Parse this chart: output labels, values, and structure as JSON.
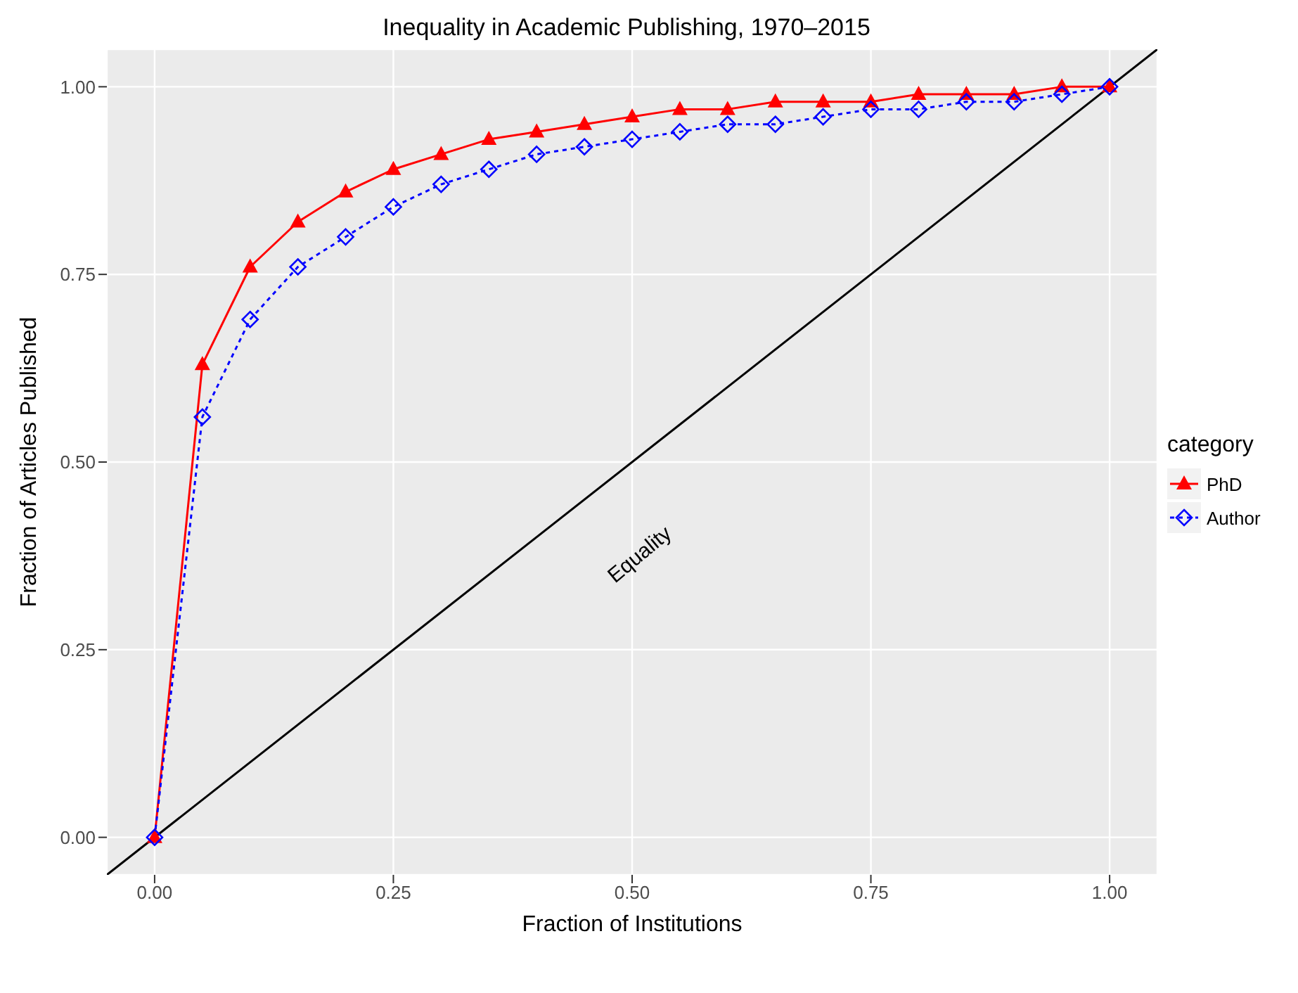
{
  "chart_data": {
    "type": "line",
    "title": "Inequality in Academic Publishing, 1970–2015",
    "xlabel": "Fraction of Institutions",
    "ylabel": "Fraction of Articles Published",
    "legend_title": "category",
    "x": [
      0,
      0.05,
      0.1,
      0.15,
      0.2,
      0.25,
      0.3,
      0.35,
      0.4,
      0.45,
      0.5,
      0.55,
      0.6,
      0.65,
      0.7,
      0.75,
      0.8,
      0.85,
      0.9,
      0.95,
      1
    ],
    "series": [
      {
        "name": "PhD",
        "color": "#ff0000",
        "marker": "triangle",
        "line_style": "solid",
        "values": [
          0,
          0.63,
          0.76,
          0.82,
          0.86,
          0.89,
          0.91,
          0.93,
          0.94,
          0.95,
          0.96,
          0.97,
          0.97,
          0.98,
          0.98,
          0.98,
          0.99,
          0.99,
          0.99,
          1.0,
          1.0
        ]
      },
      {
        "name": "Author",
        "color": "#0000ff",
        "marker": "diamond",
        "line_style": "dotted",
        "values": [
          0,
          0.56,
          0.69,
          0.76,
          0.8,
          0.84,
          0.87,
          0.89,
          0.91,
          0.92,
          0.93,
          0.94,
          0.95,
          0.95,
          0.96,
          0.97,
          0.97,
          0.98,
          0.98,
          0.99,
          1.0
        ]
      },
      {
        "type": "line",
        "color": "#000000",
        "marker": "none",
        "line_style": "solid",
        "x": [
          -0.05,
          1.05
        ],
        "values": [
          -0.05,
          1.05
        ]
      }
    ],
    "annotations": [
      "Equality"
    ],
    "xlim": [
      -0.05,
      1.05
    ],
    "ylim": [
      -0.05,
      1.05
    ],
    "xticks": [
      {
        "value": 0,
        "label": "0.00"
      },
      {
        "value": 0.25,
        "label": "0.25"
      },
      {
        "value": 0.5,
        "label": "0.50"
      },
      {
        "value": 0.75,
        "label": "0.75"
      },
      {
        "value": 1,
        "label": "1.00"
      }
    ],
    "yticks": [
      {
        "value": 0,
        "label": "0.00"
      },
      {
        "value": 0.25,
        "label": "0.25"
      },
      {
        "value": 0.5,
        "label": "0.50"
      },
      {
        "value": 0.75,
        "label": "0.75"
      },
      {
        "value": 1,
        "label": "1.00"
      }
    ],
    "grid": true,
    "legend": "right"
  }
}
